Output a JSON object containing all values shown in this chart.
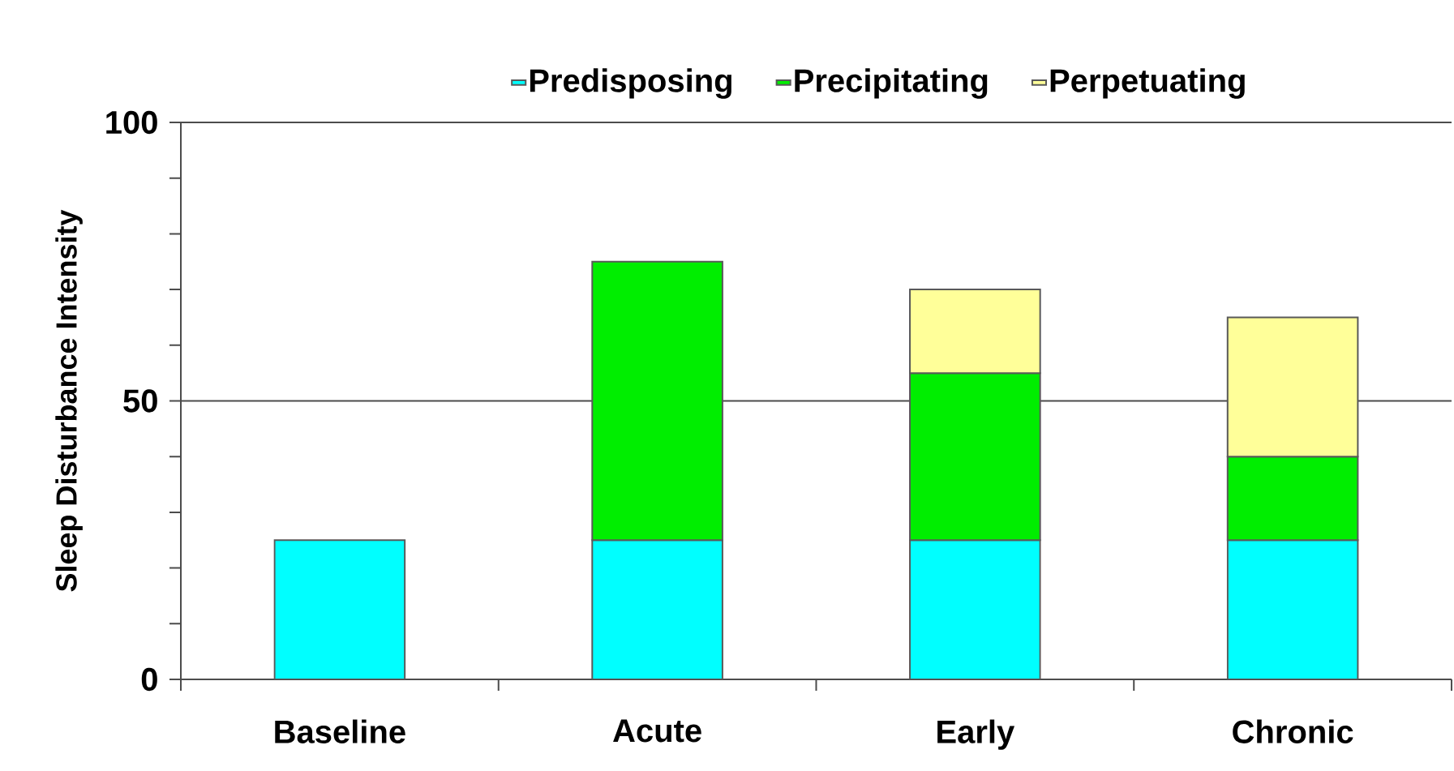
{
  "chart_data": {
    "type": "bar",
    "stacked": true,
    "ylabel": "Sleep Disturbance Intensity",
    "categories": [
      "Baseline",
      "Acute",
      "Early",
      "Chronic"
    ],
    "series": [
      {
        "name": "Predisposing",
        "color": "#00ffff",
        "values": [
          25,
          25,
          25,
          25
        ]
      },
      {
        "name": "Precipitating",
        "color": "#00ee00",
        "values": [
          null,
          50,
          30,
          15
        ]
      },
      {
        "name": "Perpetuating",
        "color": "#ffff99",
        "values": [
          null,
          null,
          15,
          25
        ]
      }
    ],
    "ylim": [
      0,
      100
    ],
    "yticks": [
      0,
      {
        "value": 10,
        "label": null
      },
      {
        "value": 20,
        "label": null
      },
      {
        "value": 30,
        "label": null
      },
      {
        "value": 40,
        "label": null
      },
      50,
      {
        "value": 60,
        "label": null
      },
      {
        "value": 70,
        "label": null
      },
      {
        "value": 80,
        "label": null
      },
      {
        "value": 90,
        "label": null
      },
      100
    ],
    "grid": "y",
    "legend": "top"
  }
}
